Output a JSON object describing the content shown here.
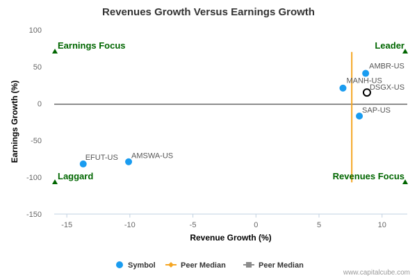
{
  "chart_data": {
    "type": "scatter",
    "title": "Revenues Growth Versus Earnings Growth",
    "xlabel": "Revenue Growth (%)",
    "ylabel": "Earnings Growth (%)",
    "xlim": [
      -16,
      12
    ],
    "ylim": [
      -150,
      100
    ],
    "x_ticks": [
      -15,
      -10,
      -5,
      0,
      5,
      10
    ],
    "y_ticks": [
      100,
      50,
      0,
      -50,
      -100,
      -150
    ],
    "points": [
      {
        "label": "AMBR-US",
        "x": 8.7,
        "y": 41,
        "highlight": false
      },
      {
        "label": "MANH-US",
        "x": 6.9,
        "y": 21,
        "highlight": false
      },
      {
        "label": "DSGX-US",
        "x": 8.8,
        "y": 15,
        "highlight": true
      },
      {
        "label": "SAP-US",
        "x": 8.2,
        "y": -17,
        "highlight": false
      },
      {
        "label": "EFUT-US",
        "x": -13.7,
        "y": -82,
        "highlight": false
      },
      {
        "label": "AMSWA-US",
        "x": -10.1,
        "y": -79,
        "highlight": false
      }
    ],
    "peer_median_revenue": 7.6,
    "peer_median_earnings": -1,
    "peer_median_revenue_span": [
      -107,
      70
    ],
    "quadrants": {
      "top_left": "Earnings Focus",
      "top_right": "Leader",
      "bottom_left": "Laggard",
      "bottom_right": "Revenues Focus"
    },
    "legend": [
      {
        "name": "Symbol",
        "marker": "circle",
        "color": "#1a9cf0"
      },
      {
        "name": "Peer Median",
        "marker": "diamond",
        "color": "#f5a623"
      },
      {
        "name": "Peer Median",
        "marker": "square",
        "color": "#8c8c8c"
      }
    ],
    "credit": "www.capitalcube.com"
  },
  "colors": {
    "point": "#1a9cf0",
    "highlight_stroke": "#000000",
    "peer_revenue_line": "#f5a623",
    "peer_earnings_line": "#8c8c8c",
    "quadrant_text": "#006600",
    "quadrant_marker": "#006600",
    "axis": "#c0d0e0"
  }
}
